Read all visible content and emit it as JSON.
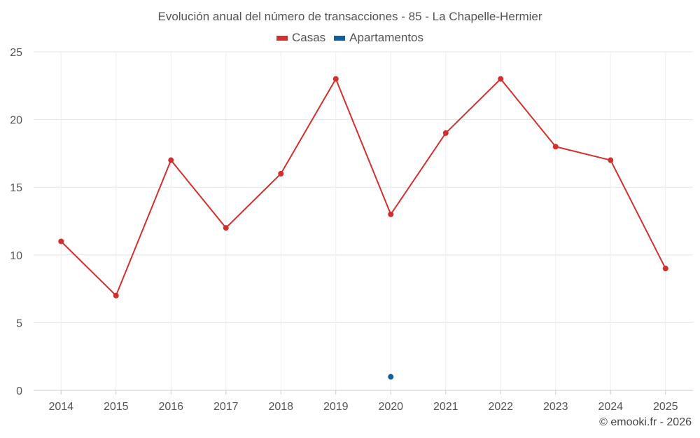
{
  "chart_data": {
    "type": "line",
    "title": "Evolución anual del número de transacciones - 85 - La Chapelle-Hermier",
    "x": [
      "2014",
      "2015",
      "2016",
      "2017",
      "2018",
      "2019",
      "2020",
      "2021",
      "2022",
      "2023",
      "2024",
      "2025"
    ],
    "yticks": [
      "0",
      "5",
      "10",
      "15",
      "20",
      "25"
    ],
    "ylim": [
      0,
      25
    ],
    "grid": true,
    "legend_position": "top-center",
    "series": [
      {
        "name": "Casas",
        "color": "#d32f2f",
        "values": [
          11,
          7,
          17,
          12,
          16,
          23,
          13,
          19,
          23,
          18,
          17,
          9
        ]
      },
      {
        "name": "Apartamentos",
        "color": "#0d5fa0",
        "values": [
          null,
          null,
          null,
          null,
          null,
          null,
          1,
          null,
          null,
          null,
          null,
          null
        ]
      }
    ]
  },
  "footer": {
    "credit": "© emooki.fr - 2026"
  }
}
